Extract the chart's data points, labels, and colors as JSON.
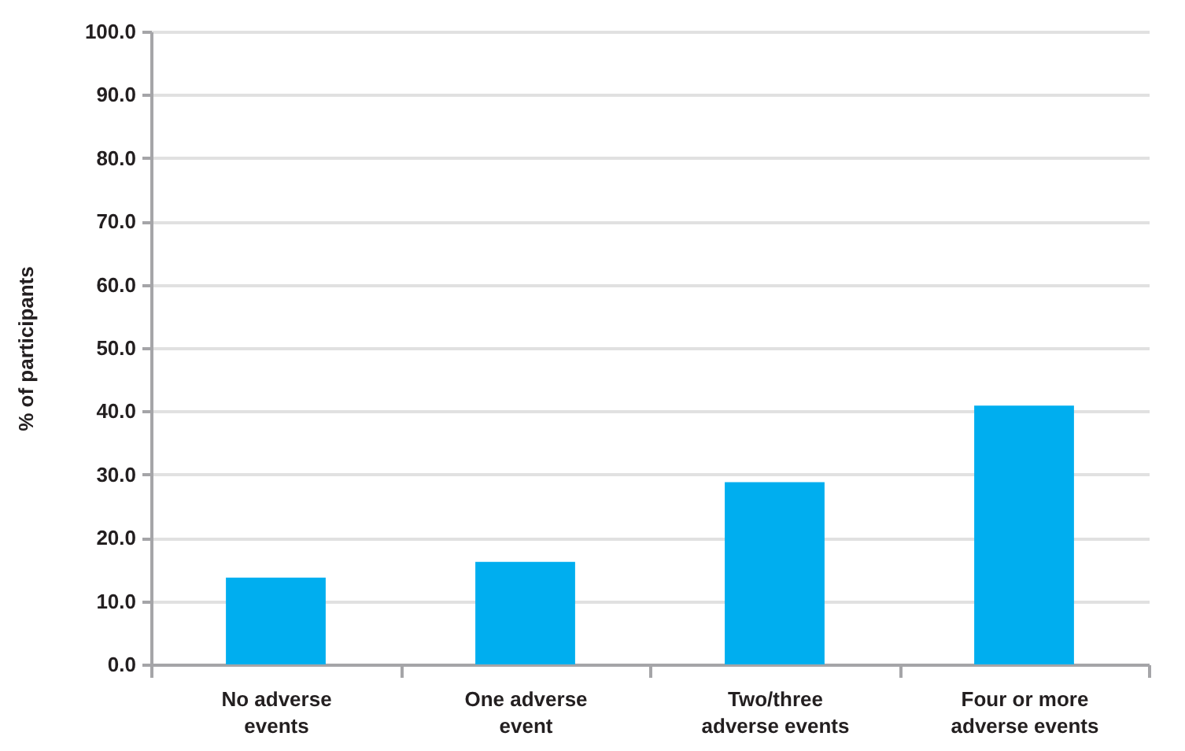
{
  "chart_data": {
    "type": "bar",
    "ylabel": "% of participants",
    "categories": [
      "No adverse events",
      "One adverse event",
      "Two/three adverse events",
      "Four or more adverse events"
    ],
    "values": [
      13.7,
      16.2,
      28.8,
      40.9
    ],
    "color": "#00aeef",
    "ylim": [
      0,
      100
    ],
    "yticks": [
      {
        "value": 0,
        "label": "0.0"
      },
      {
        "value": 10,
        "label": "10.0"
      },
      {
        "value": 20,
        "label": "20.0"
      },
      {
        "value": 30,
        "label": "30.0"
      },
      {
        "value": 40,
        "label": "40.0"
      },
      {
        "value": 50,
        "label": "50.0"
      },
      {
        "value": 60,
        "label": "60.0"
      },
      {
        "value": 70,
        "label": "70.0"
      },
      {
        "value": 80,
        "label": "80.0"
      },
      {
        "value": 90,
        "label": "90.0"
      },
      {
        "value": 100,
        "label": "100.0"
      }
    ],
    "grid": "y"
  }
}
